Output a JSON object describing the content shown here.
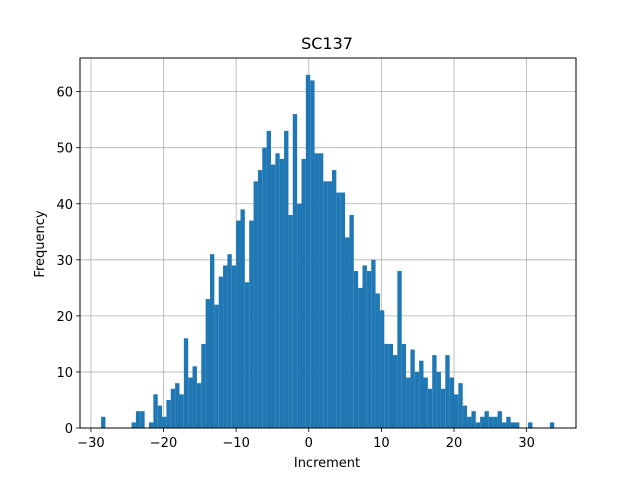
{
  "chart_data": {
    "type": "bar",
    "title": "SC137",
    "xlabel": "Increment",
    "ylabel": "Frequency",
    "xlim": [
      -31.5,
      36.8
    ],
    "ylim": [
      0,
      66
    ],
    "grid": true,
    "bar_color": "#1f77b4",
    "bin_width": 0.6,
    "xticks": [
      -30,
      -20,
      -10,
      0,
      10,
      20,
      30
    ],
    "yticks": [
      0,
      10,
      20,
      30,
      40,
      50,
      60
    ],
    "bins": [
      {
        "x": -28.3,
        "y": 2
      },
      {
        "x": -24.1,
        "y": 1
      },
      {
        "x": -23.5,
        "y": 3
      },
      {
        "x": -22.9,
        "y": 3
      },
      {
        "x": -21.7,
        "y": 1
      },
      {
        "x": -21.1,
        "y": 6
      },
      {
        "x": -20.5,
        "y": 4
      },
      {
        "x": -19.9,
        "y": 2
      },
      {
        "x": -19.3,
        "y": 5
      },
      {
        "x": -18.7,
        "y": 7
      },
      {
        "x": -18.1,
        "y": 8
      },
      {
        "x": -17.5,
        "y": 6
      },
      {
        "x": -16.9,
        "y": 16
      },
      {
        "x": -16.3,
        "y": 9
      },
      {
        "x": -15.7,
        "y": 11
      },
      {
        "x": -15.1,
        "y": 8
      },
      {
        "x": -14.5,
        "y": 15
      },
      {
        "x": -13.9,
        "y": 23
      },
      {
        "x": -13.3,
        "y": 31
      },
      {
        "x": -12.7,
        "y": 22
      },
      {
        "x": -12.1,
        "y": 27
      },
      {
        "x": -11.5,
        "y": 29
      },
      {
        "x": -10.9,
        "y": 31
      },
      {
        "x": -10.3,
        "y": 29
      },
      {
        "x": -9.7,
        "y": 37
      },
      {
        "x": -9.1,
        "y": 39
      },
      {
        "x": -8.5,
        "y": 26
      },
      {
        "x": -7.9,
        "y": 37
      },
      {
        "x": -7.3,
        "y": 44
      },
      {
        "x": -6.7,
        "y": 46
      },
      {
        "x": -6.1,
        "y": 50
      },
      {
        "x": -5.5,
        "y": 53
      },
      {
        "x": -4.9,
        "y": 47
      },
      {
        "x": -4.3,
        "y": 49
      },
      {
        "x": -3.7,
        "y": 48
      },
      {
        "x": -3.1,
        "y": 53
      },
      {
        "x": -2.5,
        "y": 38
      },
      {
        "x": -1.9,
        "y": 56
      },
      {
        "x": -1.3,
        "y": 40
      },
      {
        "x": -0.7,
        "y": 48
      },
      {
        "x": -0.1,
        "y": 63
      },
      {
        "x": 0.5,
        "y": 62
      },
      {
        "x": 1.1,
        "y": 49
      },
      {
        "x": 1.7,
        "y": 49
      },
      {
        "x": 2.3,
        "y": 44
      },
      {
        "x": 2.9,
        "y": 44
      },
      {
        "x": 3.5,
        "y": 46
      },
      {
        "x": 4.1,
        "y": 42
      },
      {
        "x": 4.7,
        "y": 42
      },
      {
        "x": 5.3,
        "y": 34
      },
      {
        "x": 5.9,
        "y": 38
      },
      {
        "x": 6.5,
        "y": 28
      },
      {
        "x": 7.1,
        "y": 25
      },
      {
        "x": 7.7,
        "y": 29
      },
      {
        "x": 8.3,
        "y": 28
      },
      {
        "x": 8.9,
        "y": 30
      },
      {
        "x": 9.5,
        "y": 24
      },
      {
        "x": 10.1,
        "y": 21
      },
      {
        "x": 10.7,
        "y": 15
      },
      {
        "x": 11.3,
        "y": 15
      },
      {
        "x": 11.9,
        "y": 13
      },
      {
        "x": 12.5,
        "y": 28
      },
      {
        "x": 13.1,
        "y": 15
      },
      {
        "x": 13.7,
        "y": 9
      },
      {
        "x": 14.3,
        "y": 14
      },
      {
        "x": 14.9,
        "y": 10
      },
      {
        "x": 15.5,
        "y": 12
      },
      {
        "x": 16.1,
        "y": 9
      },
      {
        "x": 16.7,
        "y": 7
      },
      {
        "x": 17.3,
        "y": 13
      },
      {
        "x": 17.9,
        "y": 10
      },
      {
        "x": 18.5,
        "y": 7
      },
      {
        "x": 19.1,
        "y": 13
      },
      {
        "x": 19.7,
        "y": 9
      },
      {
        "x": 20.3,
        "y": 6
      },
      {
        "x": 20.9,
        "y": 8
      },
      {
        "x": 21.5,
        "y": 4
      },
      {
        "x": 22.1,
        "y": 2
      },
      {
        "x": 22.7,
        "y": 3
      },
      {
        "x": 23.3,
        "y": 1
      },
      {
        "x": 23.9,
        "y": 2
      },
      {
        "x": 24.5,
        "y": 3
      },
      {
        "x": 25.1,
        "y": 2
      },
      {
        "x": 25.7,
        "y": 2
      },
      {
        "x": 26.3,
        "y": 3
      },
      {
        "x": 26.9,
        "y": 1
      },
      {
        "x": 27.5,
        "y": 2
      },
      {
        "x": 28.1,
        "y": 1
      },
      {
        "x": 28.7,
        "y": 1
      },
      {
        "x": 30.5,
        "y": 1
      },
      {
        "x": 33.5,
        "y": 1
      }
    ]
  }
}
